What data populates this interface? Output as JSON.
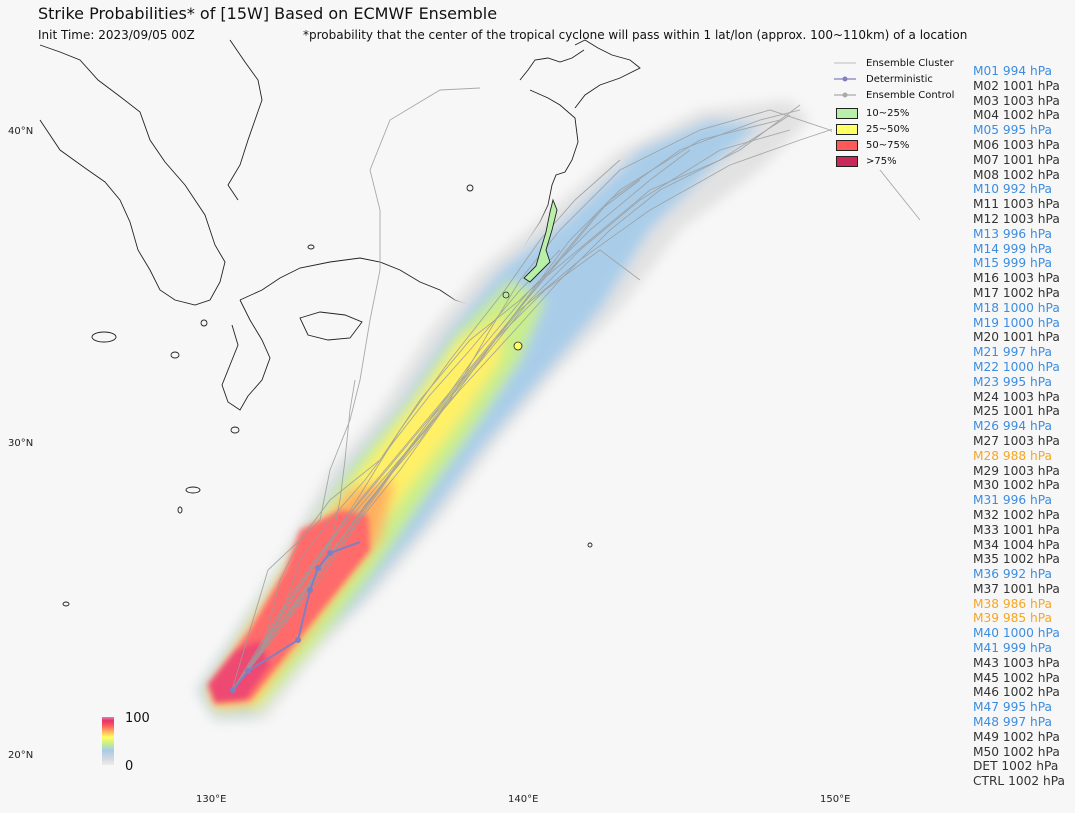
{
  "title": "Strike Probabilities* of [15W] Based on ECMWF Ensemble",
  "init_time": "Init Time: 2023/09/05 00Z",
  "footnote": "*probability that the center of the tropical cyclone will pass within 1 lat/lon (approx. 100~110km) of a location",
  "axes": {
    "lat_labels": [
      "40°N",
      "30°N",
      "20°N"
    ],
    "lon_labels": [
      "130°E",
      "140°E",
      "150°E"
    ]
  },
  "legend": {
    "cluster": "Ensemble Cluster",
    "deterministic": "Deterministic",
    "control": "Ensemble Control",
    "bins": [
      {
        "label": "10~25%",
        "color": "#b8f0a8"
      },
      {
        "label": "25~50%",
        "color": "#ffff66"
      },
      {
        "label": "50~75%",
        "color": "#ff5a5a"
      },
      {
        "label": ">75%",
        "color": "#c8285a"
      }
    ]
  },
  "colorbar": {
    "max_label": "100",
    "min_label": "0"
  },
  "members": [
    {
      "label": "M01 994 hPa",
      "color": "#3c8de0"
    },
    {
      "label": "M02 1001 hPa",
      "color": "#333333"
    },
    {
      "label": "M03 1003 hPa",
      "color": "#333333"
    },
    {
      "label": "M04 1002 hPa",
      "color": "#333333"
    },
    {
      "label": "M05 995 hPa",
      "color": "#3c8de0"
    },
    {
      "label": "M06 1003 hPa",
      "color": "#333333"
    },
    {
      "label": "M07 1001 hPa",
      "color": "#333333"
    },
    {
      "label": "M08 1002 hPa",
      "color": "#333333"
    },
    {
      "label": "M10 992 hPa",
      "color": "#3c8de0"
    },
    {
      "label": "M11 1003 hPa",
      "color": "#333333"
    },
    {
      "label": "M12 1003 hPa",
      "color": "#333333"
    },
    {
      "label": "M13 996 hPa",
      "color": "#3c8de0"
    },
    {
      "label": "M14 999 hPa",
      "color": "#3c8de0"
    },
    {
      "label": "M15 999 hPa",
      "color": "#3c8de0"
    },
    {
      "label": "M16 1003 hPa",
      "color": "#333333"
    },
    {
      "label": "M17 1002 hPa",
      "color": "#333333"
    },
    {
      "label": "M18 1000 hPa",
      "color": "#3c8de0"
    },
    {
      "label": "M19 1000 hPa",
      "color": "#3c8de0"
    },
    {
      "label": "M20 1001 hPa",
      "color": "#333333"
    },
    {
      "label": "M21 997 hPa",
      "color": "#3c8de0"
    },
    {
      "label": "M22 1000 hPa",
      "color": "#3c8de0"
    },
    {
      "label": "M23 995 hPa",
      "color": "#3c8de0"
    },
    {
      "label": "M24 1003 hPa",
      "color": "#333333"
    },
    {
      "label": "M25 1001 hPa",
      "color": "#333333"
    },
    {
      "label": "M26 994 hPa",
      "color": "#3c8de0"
    },
    {
      "label": "M27 1003 hPa",
      "color": "#333333"
    },
    {
      "label": "M28 988 hPa",
      "color": "#f5a623"
    },
    {
      "label": "M29 1003 hPa",
      "color": "#333333"
    },
    {
      "label": "M30 1002 hPa",
      "color": "#333333"
    },
    {
      "label": "M31 996 hPa",
      "color": "#3c8de0"
    },
    {
      "label": "M32 1002 hPa",
      "color": "#333333"
    },
    {
      "label": "M33 1001 hPa",
      "color": "#333333"
    },
    {
      "label": "M34 1004 hPa",
      "color": "#333333"
    },
    {
      "label": "M35 1002 hPa",
      "color": "#333333"
    },
    {
      "label": "M36 992 hPa",
      "color": "#3c8de0"
    },
    {
      "label": "M37 1001 hPa",
      "color": "#333333"
    },
    {
      "label": "M38 986 hPa",
      "color": "#f5a623"
    },
    {
      "label": "M39 985 hPa",
      "color": "#f5a623"
    },
    {
      "label": "M40 1000 hPa",
      "color": "#3c8de0"
    },
    {
      "label": "M41 999 hPa",
      "color": "#3c8de0"
    },
    {
      "label": "M43 1003 hPa",
      "color": "#333333"
    },
    {
      "label": "M45 1002 hPa",
      "color": "#333333"
    },
    {
      "label": "M46 1002 hPa",
      "color": "#333333"
    },
    {
      "label": "M47 995 hPa",
      "color": "#3c8de0"
    },
    {
      "label": "M48 997 hPa",
      "color": "#3c8de0"
    },
    {
      "label": "M49 1002 hPa",
      "color": "#333333"
    },
    {
      "label": "M50 1002 hPa",
      "color": "#333333"
    },
    {
      "label": "DET 1002 hPa",
      "color": "#333333"
    },
    {
      "label": "CTRL 1002 hPa",
      "color": "#333333"
    }
  ]
}
